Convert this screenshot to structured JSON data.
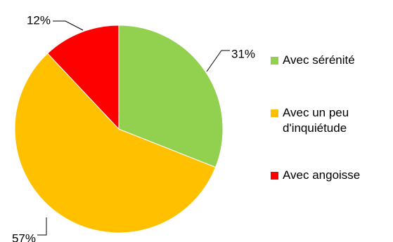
{
  "chart_data": {
    "type": "pie",
    "title": "",
    "slices": [
      {
        "name": "Avec sérénité",
        "value": 31,
        "label": "31%",
        "color": "#92D050"
      },
      {
        "name": "Avec un peu d'inquiétude",
        "value": 57,
        "label": "57%",
        "color": "#FFC000"
      },
      {
        "name": "Avec angoisse",
        "value": 12,
        "label": "12%",
        "color": "#FF0000"
      }
    ],
    "legend_position": "right"
  }
}
